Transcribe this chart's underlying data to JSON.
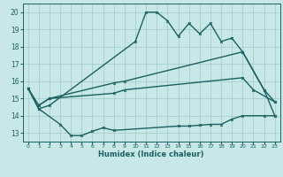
{
  "bg_color": "#c8e8e8",
  "grid_color": "#a0c8c8",
  "line_color": "#1a6060",
  "xlabel": "Humidex (Indice chaleur)",
  "xlim": [
    -0.5,
    23.5
  ],
  "ylim": [
    12.5,
    20.5
  ],
  "yticks": [
    13,
    14,
    15,
    16,
    17,
    18,
    19,
    20
  ],
  "xticks": [
    0,
    1,
    2,
    3,
    4,
    5,
    6,
    7,
    8,
    9,
    10,
    11,
    12,
    13,
    14,
    15,
    16,
    17,
    18,
    19,
    20,
    21,
    22,
    23
  ],
  "line_a": [
    [
      0,
      15.6
    ],
    [
      1,
      14.4
    ],
    [
      2,
      14.6
    ],
    [
      10,
      18.3
    ],
    [
      11,
      20.0
    ],
    [
      12,
      20.0
    ],
    [
      13,
      19.5
    ],
    [
      14,
      18.6
    ],
    [
      15,
      19.35
    ],
    [
      16,
      18.75
    ],
    [
      17,
      19.35
    ],
    [
      18,
      18.3
    ],
    [
      19,
      18.5
    ],
    [
      20,
      17.7
    ],
    [
      22,
      15.5
    ],
    [
      23,
      14.0
    ]
  ],
  "line_b": [
    [
      0,
      15.6
    ],
    [
      1,
      14.6
    ],
    [
      2,
      15.0
    ],
    [
      8,
      15.9
    ],
    [
      9,
      16.0
    ],
    [
      20,
      17.7
    ],
    [
      22,
      15.5
    ],
    [
      23,
      14.8
    ]
  ],
  "line_c": [
    [
      1,
      14.6
    ],
    [
      2,
      15.0
    ],
    [
      8,
      15.3
    ],
    [
      9,
      15.5
    ],
    [
      20,
      16.2
    ],
    [
      21,
      15.5
    ],
    [
      23,
      14.8
    ]
  ],
  "line_d": [
    [
      0,
      15.6
    ],
    [
      1,
      14.4
    ],
    [
      3,
      13.5
    ],
    [
      4,
      12.85
    ],
    [
      5,
      12.85
    ],
    [
      6,
      13.1
    ],
    [
      7,
      13.3
    ],
    [
      8,
      13.15
    ],
    [
      14,
      13.4
    ],
    [
      15,
      13.4
    ],
    [
      16,
      13.45
    ],
    [
      17,
      13.5
    ],
    [
      18,
      13.5
    ],
    [
      19,
      13.8
    ],
    [
      20,
      14.0
    ],
    [
      22,
      14.0
    ],
    [
      23,
      14.0
    ]
  ]
}
